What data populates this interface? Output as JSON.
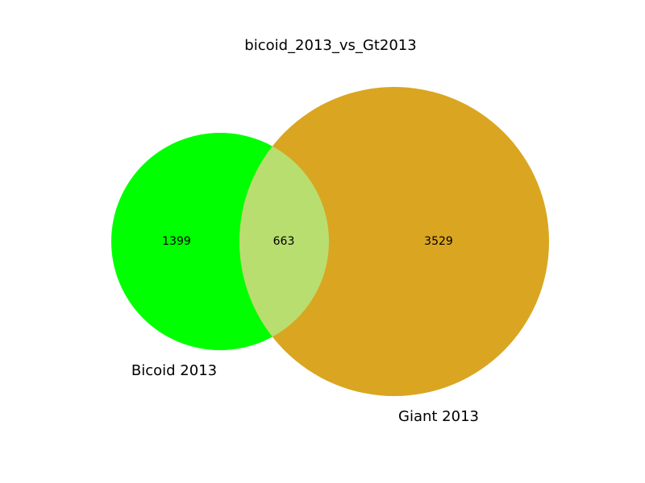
{
  "chart_data": {
    "type": "venn",
    "title": "bicoid_2013_vs_Gt2013",
    "sets": [
      {
        "name": "Bicoid 2013",
        "only": 1399,
        "color": "#00ff00"
      },
      {
        "name": "Giant 2013",
        "only": 3529,
        "color": "#daa520"
      }
    ],
    "intersection": {
      "value": 663,
      "color": "#b8de70"
    }
  }
}
